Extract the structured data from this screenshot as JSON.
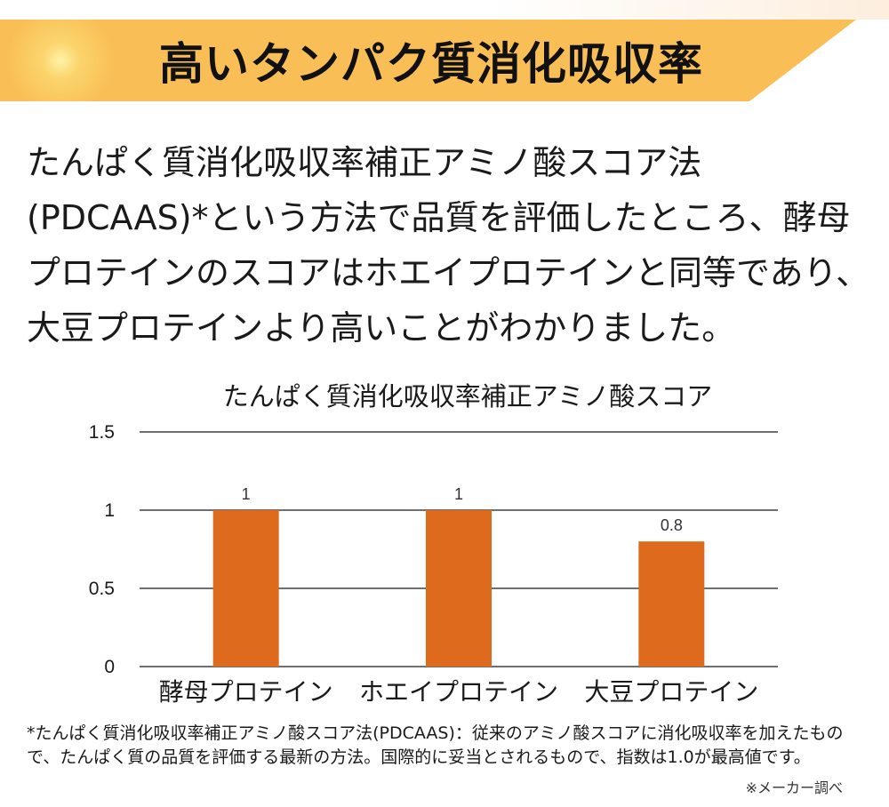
{
  "banner": {
    "title": "高いタンパク質消化吸収率"
  },
  "intro": {
    "text": "たんぱく質消化吸収率補正アミノ酸スコア法(PDCAAS)*という方法で品質を評価したところ、酵母プロテインのスコアはホエイプロテインと同等であり、大豆プロテインより高いことがわかりました。"
  },
  "colors": {
    "bar": "#DD6A1D",
    "banner": "#F9BF56",
    "grid": "#1a1a1a"
  },
  "chart_data": {
    "type": "bar",
    "title": "たんぱく質消化吸収率補正アミノ酸スコア",
    "categories": [
      "酵母プロテイン",
      "ホエイプロテイン",
      "大豆プロテイン"
    ],
    "values": [
      1,
      1,
      0.8
    ],
    "data_labels": [
      "1",
      "1",
      "0.8"
    ],
    "yticks": [
      "0",
      "0.5",
      "1",
      "1.5"
    ],
    "ylim": [
      0,
      1.5
    ],
    "grid": true,
    "legend": false
  },
  "footnote": {
    "text": "*たんぱく質消化吸収率補正アミノ酸スコア法(PDCAAS)：従来のアミノ酸スコアに消化吸収率を加えたもので、たんぱく質の品質を評価する最新の方法。国際的に妥当とされるもので、指数は1.0が最高値です。"
  },
  "source": {
    "text": "※メーカー調べ"
  }
}
